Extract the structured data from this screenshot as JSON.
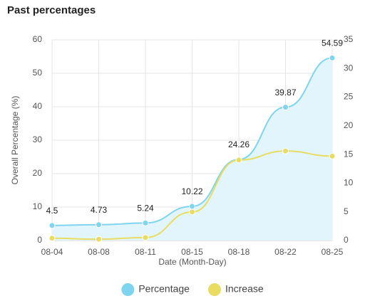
{
  "chart_data": {
    "type": "line",
    "title": "Past percentages",
    "x_label": "Date (Month-Day)",
    "y_label": "Overall Percentage (%)",
    "categories": [
      "08-04",
      "08-08",
      "08-11",
      "08-15",
      "08-18",
      "08-22",
      "08-25"
    ],
    "series": [
      {
        "name": "Percentage",
        "color": "#7fd4ef",
        "area_color": "#e2f5fc",
        "values": [
          4.5,
          4.73,
          5.24,
          10.22,
          24.26,
          39.87,
          54.59
        ],
        "data_labels": true
      },
      {
        "name": "Increase",
        "color": "#e8dc62",
        "axis": "y2",
        "values": [
          0.4,
          0.23,
          0.51,
          4.98,
          14.04,
          15.61,
          14.72
        ]
      }
    ],
    "ylim": [
      0,
      60
    ],
    "yticks": [
      0,
      10,
      20,
      30,
      40,
      50,
      60
    ],
    "y2lim": [
      0,
      35
    ],
    "y2ticks": [
      0,
      5,
      10,
      15,
      20,
      25,
      30,
      35
    ],
    "grid": true,
    "legend": "bottom"
  }
}
